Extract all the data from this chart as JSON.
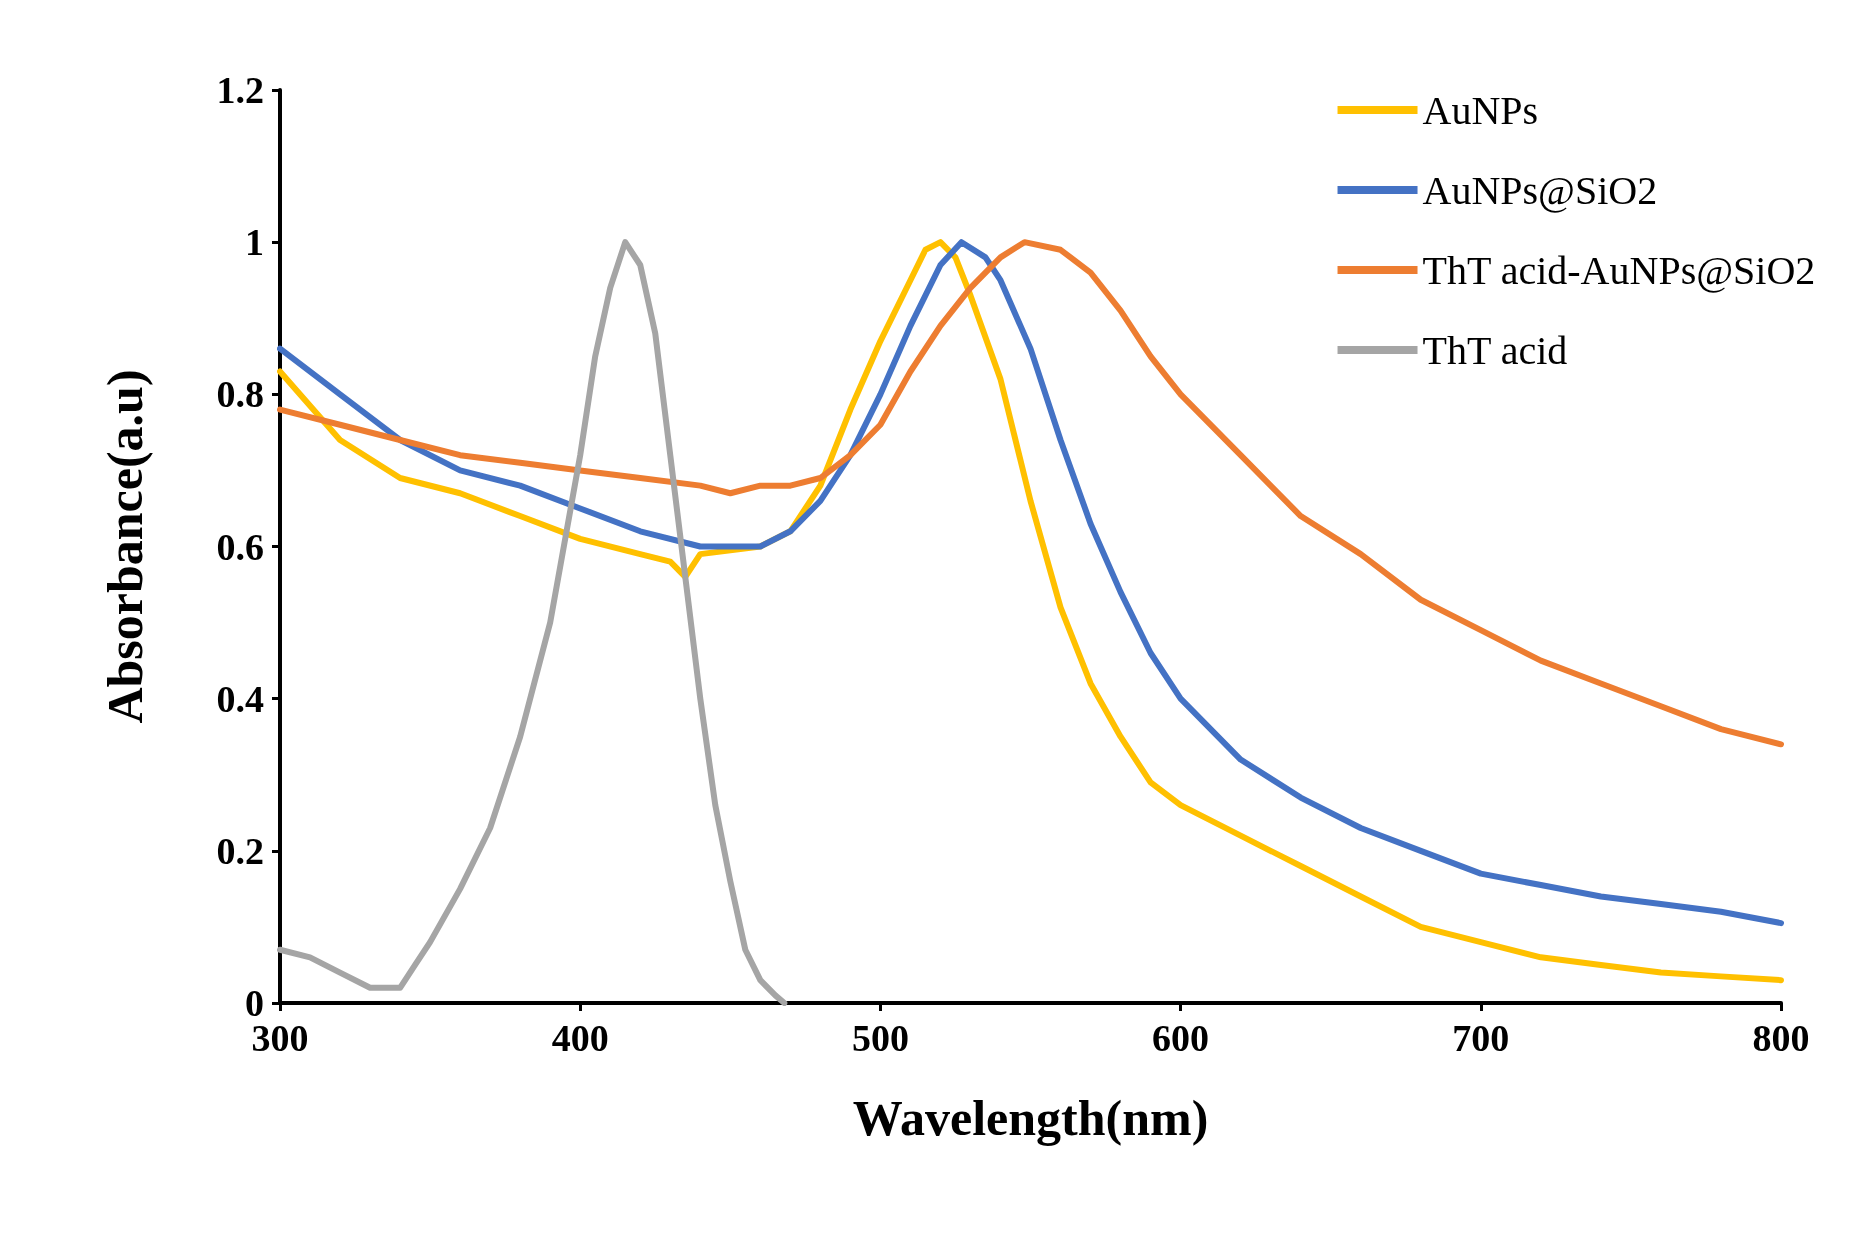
{
  "chart_data": {
    "type": "line",
    "xlabel": "Wavelength(nm)",
    "ylabel": "Absorbance(a.u)",
    "xlim": [
      300,
      800
    ],
    "xticks": [
      300,
      400,
      500,
      600,
      700,
      800
    ],
    "ylim": [
      0,
      1.2
    ],
    "yticks": [
      0,
      0.2,
      0.4,
      0.6,
      0.8,
      1,
      1.2
    ],
    "grid": false,
    "legend": "top right",
    "marker": "none",
    "line_style": "solid",
    "series": [
      {
        "name": "AuNPs",
        "color": "#ffc000",
        "x": [
          300,
          320,
          340,
          360,
          380,
          400,
          420,
          430,
          435,
          440,
          460,
          470,
          480,
          490,
          500,
          510,
          515,
          520,
          525,
          530,
          540,
          550,
          560,
          570,
          580,
          590,
          600,
          620,
          640,
          660,
          680,
          700,
          720,
          740,
          760,
          780,
          800
        ],
        "values": [
          0.83,
          0.74,
          0.69,
          0.67,
          0.64,
          0.61,
          0.59,
          0.58,
          0.56,
          0.59,
          0.6,
          0.62,
          0.68,
          0.78,
          0.87,
          0.95,
          0.99,
          1.0,
          0.98,
          0.93,
          0.82,
          0.66,
          0.52,
          0.42,
          0.35,
          0.29,
          0.26,
          0.22,
          0.18,
          0.14,
          0.1,
          0.08,
          0.06,
          0.05,
          0.04,
          0.035,
          0.03
        ]
      },
      {
        "name": "AuNPs@SiO2",
        "color": "#4472c4",
        "x": [
          300,
          320,
          340,
          360,
          380,
          400,
          420,
          440,
          460,
          470,
          480,
          490,
          500,
          510,
          520,
          527,
          535,
          540,
          550,
          560,
          570,
          580,
          590,
          600,
          620,
          640,
          660,
          680,
          700,
          720,
          740,
          760,
          780,
          800
        ],
        "values": [
          0.86,
          0.8,
          0.74,
          0.7,
          0.68,
          0.65,
          0.62,
          0.6,
          0.6,
          0.62,
          0.66,
          0.72,
          0.8,
          0.89,
          0.97,
          1.0,
          0.98,
          0.95,
          0.86,
          0.74,
          0.63,
          0.54,
          0.46,
          0.4,
          0.32,
          0.27,
          0.23,
          0.2,
          0.17,
          0.155,
          0.14,
          0.13,
          0.12,
          0.105
        ]
      },
      {
        "name": "ThT acid-AuNPs@SiO2",
        "color": "#ed7d31",
        "x": [
          300,
          320,
          340,
          360,
          380,
          400,
          420,
          440,
          450,
          460,
          470,
          480,
          490,
          500,
          510,
          520,
          530,
          540,
          548,
          560,
          570,
          580,
          590,
          600,
          620,
          640,
          660,
          680,
          700,
          720,
          740,
          760,
          780,
          800
        ],
        "values": [
          0.78,
          0.76,
          0.74,
          0.72,
          0.71,
          0.7,
          0.69,
          0.68,
          0.67,
          0.68,
          0.68,
          0.69,
          0.72,
          0.76,
          0.83,
          0.89,
          0.94,
          0.98,
          1.0,
          0.99,
          0.96,
          0.91,
          0.85,
          0.8,
          0.72,
          0.64,
          0.59,
          0.53,
          0.49,
          0.45,
          0.42,
          0.39,
          0.36,
          0.34
        ]
      },
      {
        "name": "ThT acid",
        "color": "#a5a5a5",
        "x": [
          300,
          310,
          320,
          330,
          340,
          345,
          350,
          360,
          370,
          380,
          390,
          400,
          405,
          410,
          415,
          420,
          425,
          430,
          435,
          440,
          445,
          450,
          455,
          460,
          465,
          468
        ],
        "values": [
          0.07,
          0.06,
          0.04,
          0.02,
          0.02,
          0.05,
          0.08,
          0.15,
          0.23,
          0.35,
          0.5,
          0.72,
          0.85,
          0.94,
          1.0,
          0.97,
          0.88,
          0.72,
          0.56,
          0.4,
          0.26,
          0.16,
          0.07,
          0.03,
          0.01,
          0
        ]
      }
    ]
  }
}
